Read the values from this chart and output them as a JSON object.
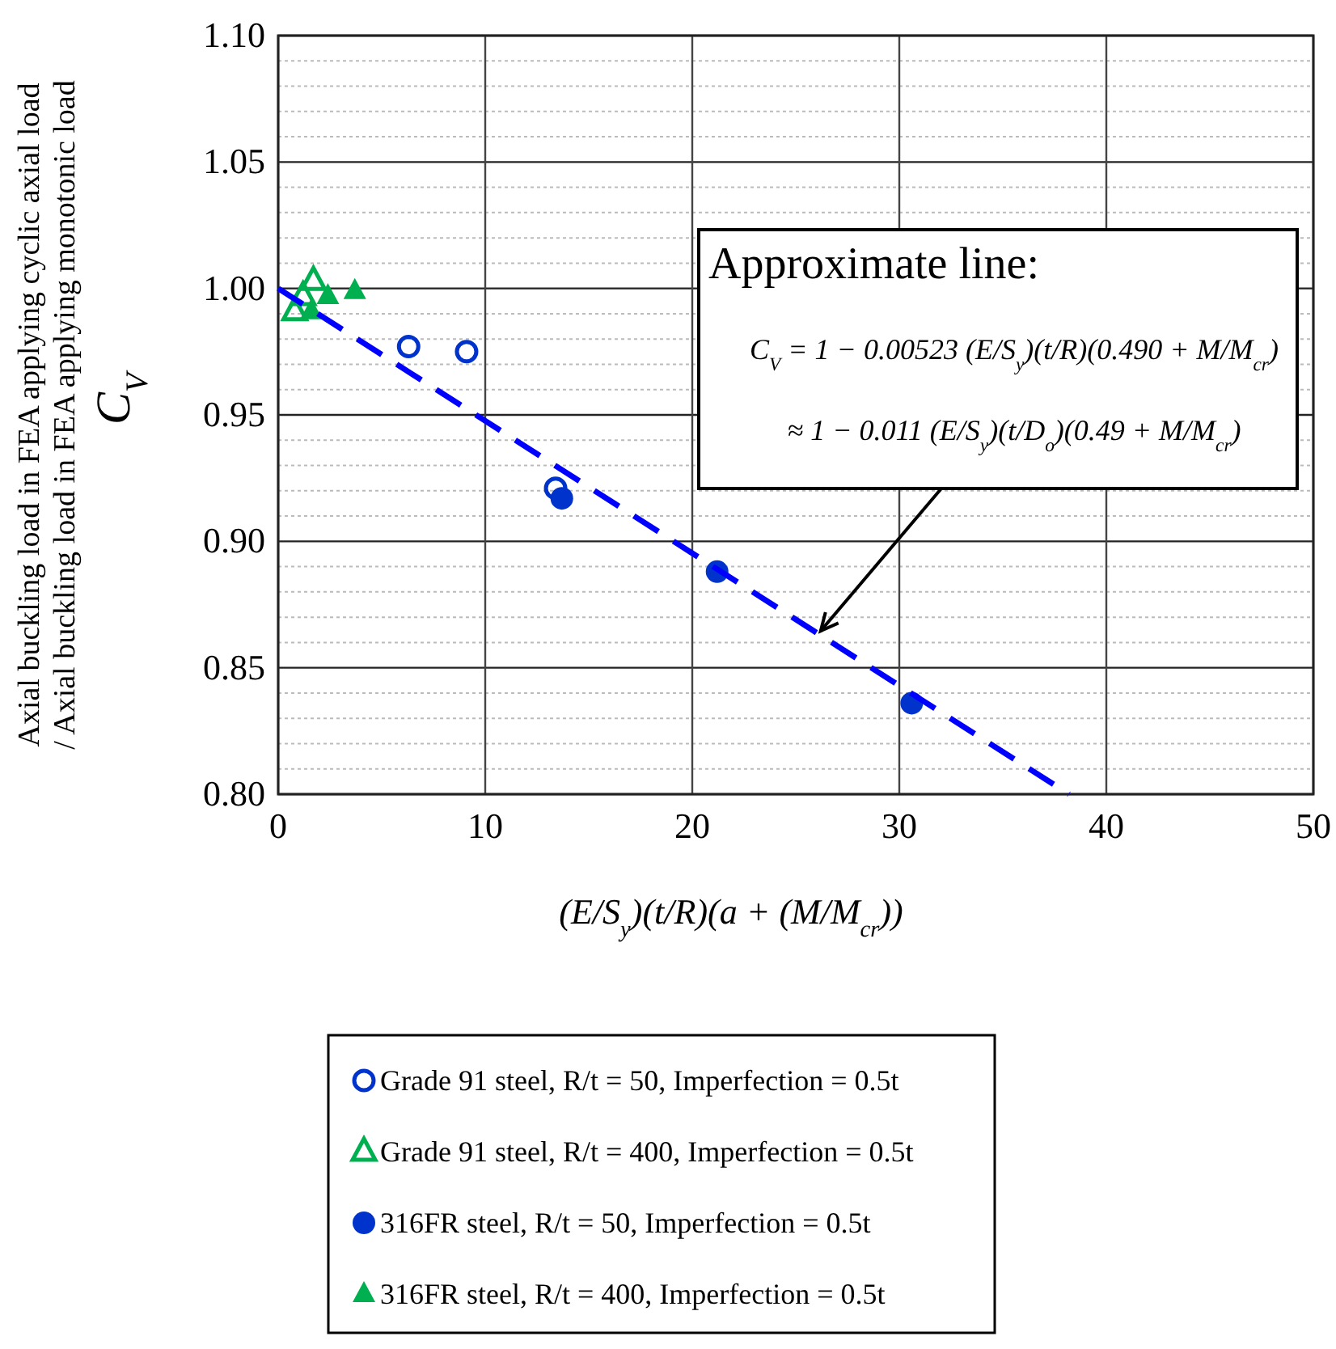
{
  "chart_data": {
    "type": "scatter",
    "xlabel": "(E/S$_{y}$)(t/R)(a + (M/M$_{cr}$))",
    "ylabel": "Axial buckling load in FEA applying cyclic axial load\n/ Axial buckling load in FEA applying monotonic load",
    "xlim": [
      0,
      50
    ],
    "xticks": [
      0,
      10,
      20,
      30,
      40,
      50
    ],
    "ylim": [
      0.8,
      1.1
    ],
    "yticks": [
      {
        "value": 0.8,
        "label": "0.80"
      },
      {
        "value": 0.81,
        "label": null
      },
      {
        "value": 0.82,
        "label": null
      },
      {
        "value": 0.83,
        "label": null
      },
      {
        "value": 0.84,
        "label": null
      },
      {
        "value": 0.85,
        "label": "0.85"
      },
      {
        "value": 0.86,
        "label": null
      },
      {
        "value": 0.87,
        "label": null
      },
      {
        "value": 0.88,
        "label": null
      },
      {
        "value": 0.89,
        "label": null
      },
      {
        "value": 0.9,
        "label": "0.90"
      },
      {
        "value": 0.91,
        "label": null
      },
      {
        "value": 0.92,
        "label": null
      },
      {
        "value": 0.93,
        "label": null
      },
      {
        "value": 0.94,
        "label": null
      },
      {
        "value": 0.95,
        "label": "0.95"
      },
      {
        "value": 0.96,
        "label": null
      },
      {
        "value": 0.97,
        "label": null
      },
      {
        "value": 0.98,
        "label": null
      },
      {
        "value": 0.99,
        "label": null
      },
      {
        "value": 1.0,
        "label": "1.00"
      },
      {
        "value": 1.01,
        "label": null
      },
      {
        "value": 1.02,
        "label": null
      },
      {
        "value": 1.03,
        "label": null
      },
      {
        "value": 1.04,
        "label": null
      },
      {
        "value": 1.05,
        "label": "1.05"
      },
      {
        "value": 1.06,
        "label": null
      },
      {
        "value": 1.07,
        "label": null
      },
      {
        "value": 1.08,
        "label": null
      },
      {
        "value": 1.09,
        "label": null
      },
      {
        "value": 1.1,
        "label": "1.10"
      }
    ],
    "grid": true,
    "legend": "bottom",
    "series": [
      {
        "name": "Grade 91 steel, R/t = 50, Imperfection = 0.5t",
        "color": "#0033cc",
        "marker": "circle-open",
        "x": [
          6.3,
          9.1,
          13.4
        ],
        "values": [
          0.977,
          0.975,
          0.921
        ]
      },
      {
        "name": "Grade 91 steel, R/t = 400, Imperfection = 0.5t",
        "color": "#00b050",
        "marker": "triangle-open",
        "x": [
          0.8,
          1.2,
          1.7
        ],
        "values": [
          0.991,
          0.997,
          1.003
        ]
      },
      {
        "name": "316FR steel, R/t = 50, Imperfection = 0.5t",
        "color": "#0033cc",
        "marker": "circle",
        "x": [
          13.7,
          21.2,
          30.6
        ],
        "values": [
          0.917,
          0.888,
          0.836
        ]
      },
      {
        "name": "316FR steel, R/t = 400, Imperfection = 0.5t",
        "color": "#00b050",
        "marker": "triangle",
        "x": [
          1.6,
          2.4,
          3.7
        ],
        "values": [
          0.991,
          0.997,
          0.999
        ]
      },
      {
        "type": "line",
        "color": "#0000ff",
        "line_style": "dashed",
        "marker": "none",
        "x": [
          0,
          38.2
        ],
        "values": [
          1.0,
          0.8
        ]
      }
    ],
    "annotations": [
      "Approximate line:",
      "C$_{V}$ = 1 − 0.00523 (E/S$_{y}$)(t/R)(0.490 + M/M$_{cr}$)",
      "≈ 1 − 0.011 (E/S$_{y}$)(t/D$_{o}$)(0.49 + M/M$_{cr}$)",
      "C$_{V}$"
    ]
  }
}
